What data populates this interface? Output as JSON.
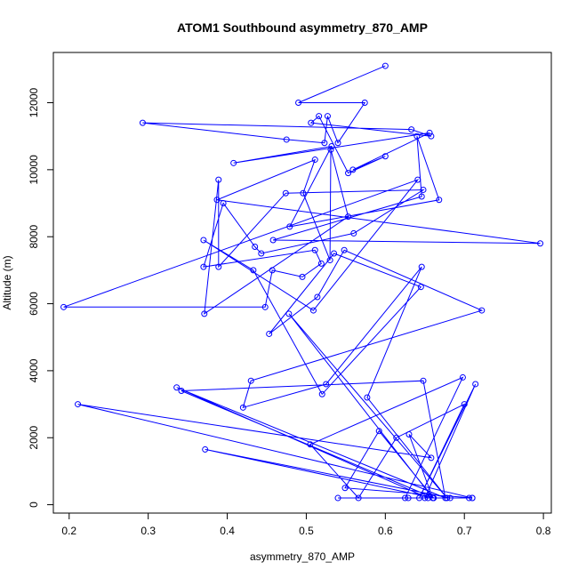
{
  "chart_data": {
    "type": "line",
    "title": "ATOM1 Southbound asymmetry_870_AMP",
    "xlabel": "asymmetry_870_AMP",
    "ylabel": "Altitude (m)",
    "xlim": [
      0.18,
      0.81
    ],
    "ylim": [
      -250,
      13500
    ],
    "x_ticks": [
      0.2,
      0.3,
      0.4,
      0.5,
      0.6,
      0.7,
      0.8
    ],
    "y_ticks": [
      0,
      2000,
      4000,
      6000,
      8000,
      10000,
      12000
    ],
    "x_tick_labels": [
      "0.2",
      "0.3",
      "0.4",
      "0.5",
      "0.6",
      "0.7",
      "0.8"
    ],
    "y_tick_labels": [
      "0",
      "2000",
      "4000",
      "6000",
      "8000",
      "10000",
      "12000"
    ],
    "series_color": "#0000ff",
    "markers": "open-circle",
    "x": [
      0.706,
      0.629,
      0.682,
      0.372,
      0.661,
      0.54,
      0.65,
      0.714,
      0.643,
      0.7,
      0.614,
      0.566,
      0.505,
      0.698,
      0.625,
      0.71,
      0.654,
      0.336,
      0.676,
      0.648,
      0.342,
      0.661,
      0.592,
      0.549,
      0.71,
      0.211,
      0.658,
      0.63,
      0.66,
      0.478,
      0.678,
      0.577,
      0.646,
      0.525,
      0.42,
      0.43,
      0.722,
      0.548,
      0.514,
      0.453,
      0.535,
      0.645,
      0.52,
      0.433,
      0.37,
      0.509,
      0.641,
      0.193,
      0.448,
      0.457,
      0.495,
      0.519,
      0.511,
      0.37,
      0.395,
      0.435,
      0.443,
      0.56,
      0.648,
      0.474,
      0.389,
      0.389,
      0.371,
      0.553,
      0.531,
      0.53,
      0.496,
      0.511,
      0.387,
      0.796,
      0.458,
      0.646,
      0.64,
      0.668,
      0.479,
      0.532,
      0.408,
      0.656,
      0.559,
      0.6,
      0.553,
      0.516,
      0.506,
      0.658,
      0.633,
      0.293,
      0.475,
      0.523,
      0.527,
      0.54,
      0.574,
      0.49,
      0.6
    ],
    "y": [
      200,
      200,
      200,
      1650,
      200,
      200,
      200,
      3600,
      200,
      3000,
      2000,
      200,
      1800,
      3800,
      200,
      200,
      200,
      3500,
      200,
      3700,
      3400,
      200,
      2200,
      500,
      200,
      3000,
      1400,
      2100,
      200,
      5700,
      200,
      3200,
      7100,
      3600,
      2900,
      3700,
      5800,
      7600,
      6200,
      5100,
      7500,
      6500,
      3300,
      7000,
      7900,
      5800,
      9700,
      5900,
      5900,
      7000,
      6800,
      7200,
      7600,
      7100,
      9000,
      7700,
      7500,
      8100,
      9400,
      9300,
      7100,
      9700,
      5700,
      8600,
      10600,
      7300,
      9300,
      10300,
      9100,
      7800,
      7900,
      9200,
      11000,
      9100,
      8300,
      10700,
      10200,
      11100,
      10000,
      10400,
      9900,
      11600,
      11400,
      11000,
      11200,
      11400,
      10900,
      10800,
      11600,
      10800,
      12000,
      12000,
      13100
    ]
  }
}
